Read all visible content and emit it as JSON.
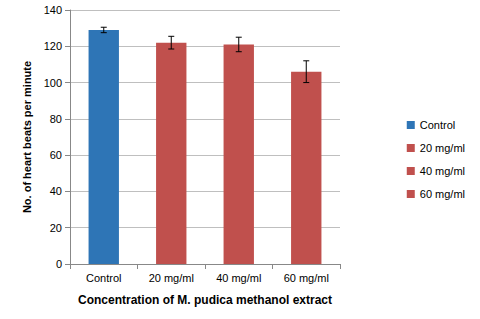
{
  "chart_data": {
    "type": "bar",
    "x_label": "Concentration of M. pudica methanol extract",
    "y_label": "No. of heart beats per minute",
    "categories": [
      "Control",
      "20 mg/ml",
      "40 mg/ml",
      "60 mg/ml"
    ],
    "values": [
      129,
      122,
      121,
      106
    ],
    "errors": [
      1.5,
      3.5,
      4,
      6
    ],
    "colors": [
      "#2e75b6",
      "#c0504d",
      "#c0504d",
      "#c0504d"
    ],
    "ylim": [
      0,
      140
    ],
    "yticks": [
      0,
      20,
      40,
      60,
      80,
      100,
      120,
      140
    ],
    "grid": true,
    "legend": "right"
  }
}
